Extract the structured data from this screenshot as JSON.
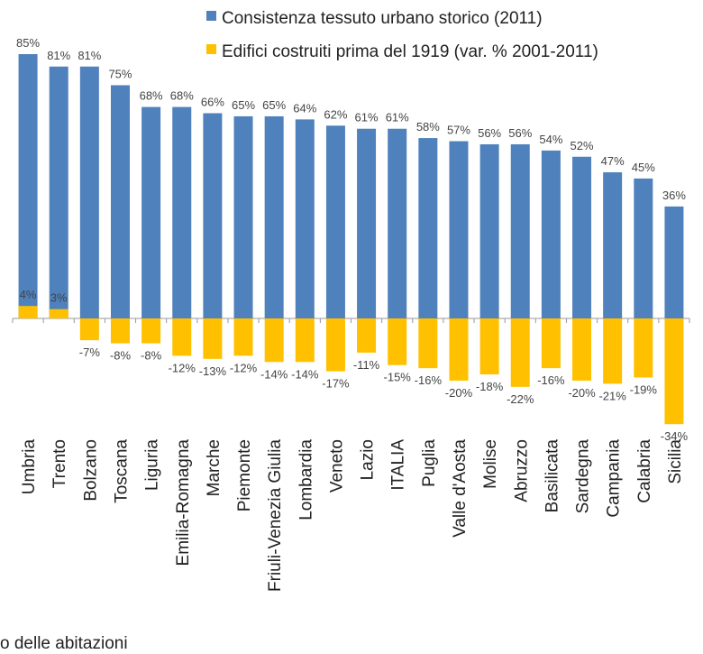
{
  "colors": {
    "series1": "#4f81bd",
    "series2": "#ffc000",
    "axis": "#999999"
  },
  "chart_data": {
    "type": "bar",
    "categories": [
      "Umbria",
      "Trento",
      "Bolzano",
      "Toscana",
      "Liguria",
      "Emilia-Romagna",
      "Marche",
      "Piemonte",
      "Friuli-Venezia Giulia",
      "Lombardia",
      "Veneto",
      "Lazio",
      "ITALIA",
      "Puglia",
      "Valle d'Aosta",
      "Molise",
      "Abruzzo",
      "Basilicata",
      "Sardegna",
      "Campania",
      "Calabria",
      "Sicilia"
    ],
    "series": [
      {
        "name": "Consistenza tessuto urbano storico (2011)",
        "values": [
          85,
          81,
          81,
          75,
          68,
          68,
          66,
          65,
          65,
          64,
          62,
          61,
          61,
          58,
          57,
          56,
          56,
          54,
          52,
          47,
          45,
          36
        ],
        "labels": [
          "85%",
          "81%",
          "81%",
          "75%",
          "68%",
          "68%",
          "66%",
          "65%",
          "65%",
          "64%",
          "62%",
          "61%",
          "61%",
          "58%",
          "57%",
          "56%",
          "56%",
          "54%",
          "52%",
          "47%",
          "45%",
          "36%"
        ]
      },
      {
        "name": "Edifici costruiti prima del 1919 (var. % 2001-2011)",
        "values": [
          4,
          3,
          -7,
          -8,
          -8,
          -12,
          -13,
          -12,
          -14,
          -14,
          -17,
          -11,
          -15,
          -16,
          -20,
          -18,
          -22,
          -16,
          -20,
          -21,
          -19,
          -34
        ],
        "labels": [
          "4%",
          "3%",
          "-7%",
          "-8%",
          "-8%",
          "-12%",
          "-13%",
          "-12%",
          "-14%",
          "-14%",
          "-17%",
          "-11%",
          "-15%",
          "-16%",
          "-20%",
          "-18%",
          "-22%",
          "-16%",
          "-20%",
          "-21%",
          "-19%",
          "-34%"
        ]
      }
    ],
    "ylim": [
      -34,
      85
    ],
    "legend": "top-right",
    "grid": false
  },
  "footer_text": "o delle abitazioni"
}
